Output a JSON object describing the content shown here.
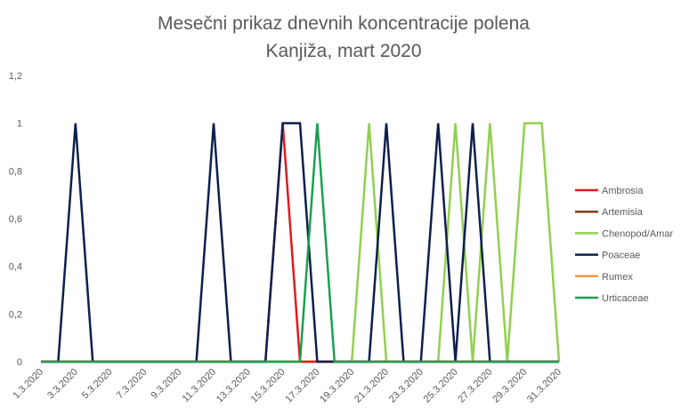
{
  "chart_data": {
    "type": "line",
    "title": [
      "Mesečni prikaz dnevnih koncentracije polena",
      "Kanjiža, mart 2020"
    ],
    "xlabel": "",
    "ylabel": "",
    "ylim": [
      0,
      1.2
    ],
    "yticks": [
      "0",
      "0,2",
      "0,4",
      "0,6",
      "0,8",
      "1",
      "1,2"
    ],
    "categories": [
      "1.3.2020",
      "2.3.2020",
      "3.3.2020",
      "4.3.2020",
      "5.3.2020",
      "6.3.2020",
      "7.3.2020",
      "8.3.2020",
      "9.3.2020",
      "10.3.2020",
      "11.3.2020",
      "12.3.2020",
      "13.3.2020",
      "14.3.2020",
      "15.3.2020",
      "16.3.2020",
      "17.3.2020",
      "18.3.2020",
      "19.3.2020",
      "20.3.2020",
      "21.3.2020",
      "22.3.2020",
      "23.3.2020",
      "24.3.2020",
      "25.3.2020",
      "26.3.2020",
      "27.3.2020",
      "28.3.2020",
      "29.3.2020",
      "30.3.2020",
      "31.3.2020"
    ],
    "xtick_labels": [
      "1.3.2020",
      "3.3.2020",
      "5.3.2020",
      "7.3.2020",
      "9.3.2020",
      "11.3.2020",
      "13.3.2020",
      "15.3.2020",
      "17.3.2020",
      "19.3.2020",
      "21.3.2020",
      "23.3.2020",
      "25.3.2020",
      "27.3.2020",
      "29.3.2020",
      "31.3.2020"
    ],
    "grid": false,
    "legend_position": "right",
    "series": [
      {
        "name": "Ambrosia",
        "color": "#e31a1c",
        "values": [
          0,
          0,
          0,
          0,
          0,
          0,
          0,
          0,
          0,
          0,
          0,
          0,
          0,
          0,
          1,
          0,
          0,
          0,
          0,
          0,
          0,
          0,
          0,
          0,
          0,
          0,
          0,
          0,
          0,
          0,
          0
        ]
      },
      {
        "name": "Artemisia",
        "color": "#843c0c",
        "values": [
          0,
          0,
          0,
          0,
          0,
          0,
          0,
          0,
          0,
          0,
          0,
          0,
          0,
          0,
          0,
          0,
          0,
          0,
          0,
          0,
          0,
          0,
          0,
          0,
          0,
          0,
          0,
          0,
          0,
          0,
          0
        ]
      },
      {
        "name": "Chenopod/Amar",
        "color": "#92d050",
        "values": [
          0,
          0,
          0,
          0,
          0,
          0,
          0,
          0,
          0,
          0,
          0,
          0,
          0,
          0,
          0,
          0,
          0,
          0,
          0,
          1,
          0,
          0,
          0,
          0,
          1,
          0,
          1,
          0,
          1,
          1,
          0
        ]
      },
      {
        "name": "Poaceae",
        "color": "#0d1f4d",
        "values": [
          0,
          0,
          1,
          0,
          0,
          0,
          0,
          0,
          0,
          0,
          1,
          0,
          0,
          0,
          1,
          1,
          0,
          0,
          0,
          0,
          1,
          0,
          0,
          1,
          0,
          1,
          0,
          0,
          0,
          0,
          0
        ]
      },
      {
        "name": "Rumex",
        "color": "#f79646",
        "values": [
          0,
          0,
          0,
          0,
          0,
          0,
          0,
          0,
          0,
          0,
          0,
          0,
          0,
          0,
          0,
          0,
          0,
          0,
          0,
          0,
          0,
          0,
          0,
          0,
          0,
          0,
          0,
          0,
          0,
          0,
          0
        ]
      },
      {
        "name": "Urticaceae",
        "color": "#1aa052",
        "values": [
          0,
          0,
          0,
          0,
          0,
          0,
          0,
          0,
          0,
          0,
          0,
          0,
          0,
          0,
          0,
          0,
          1,
          0,
          0,
          0,
          0,
          0,
          0,
          0,
          0,
          0,
          0,
          0,
          0,
          0,
          0
        ]
      }
    ]
  }
}
